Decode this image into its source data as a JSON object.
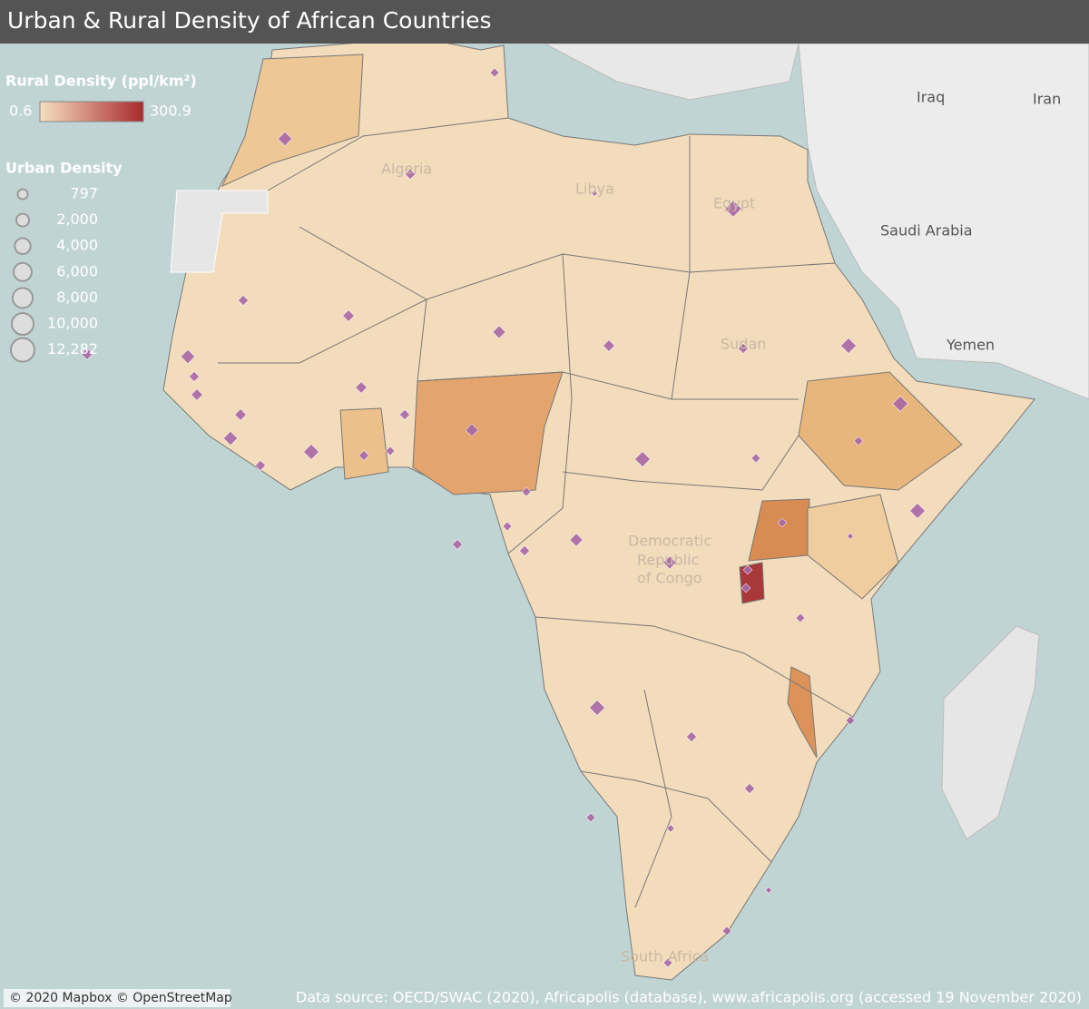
{
  "header": {
    "title": "Urban & Rural Density of African Countries"
  },
  "legend": {
    "rural": {
      "title": "Rural Density (ppl/km²)",
      "min": 0.6,
      "max": 300.9,
      "color_min": "#f6dfc0",
      "color_max": "#a8292b"
    },
    "urban": {
      "title": "Urban Density",
      "sizes": [
        797,
        {
          "value": 2000,
          "label": "2,000"
        },
        {
          "value": 4000,
          "label": "4,000"
        },
        {
          "value": 6000,
          "label": "6,000"
        },
        {
          "value": 8000,
          "label": "8,000"
        },
        {
          "value": 10000,
          "label": "10,000"
        },
        {
          "value": 12282,
          "label": "12,282"
        }
      ]
    }
  },
  "map_labels": [
    "Iraq",
    "Iran",
    "Saudi Arabia",
    "Yemen",
    "Algeria",
    "Libya",
    "Egypt",
    "Sudan",
    "Democratic",
    "Republic",
    "of Congo",
    "South Africa"
  ],
  "attribution": "© 2020 Mapbox © OpenStreetMap",
  "source": "Data source: OECD/SWAC (2020), Africapolis (database), www.africapolis.org (accessed 19 November 2020)"
}
